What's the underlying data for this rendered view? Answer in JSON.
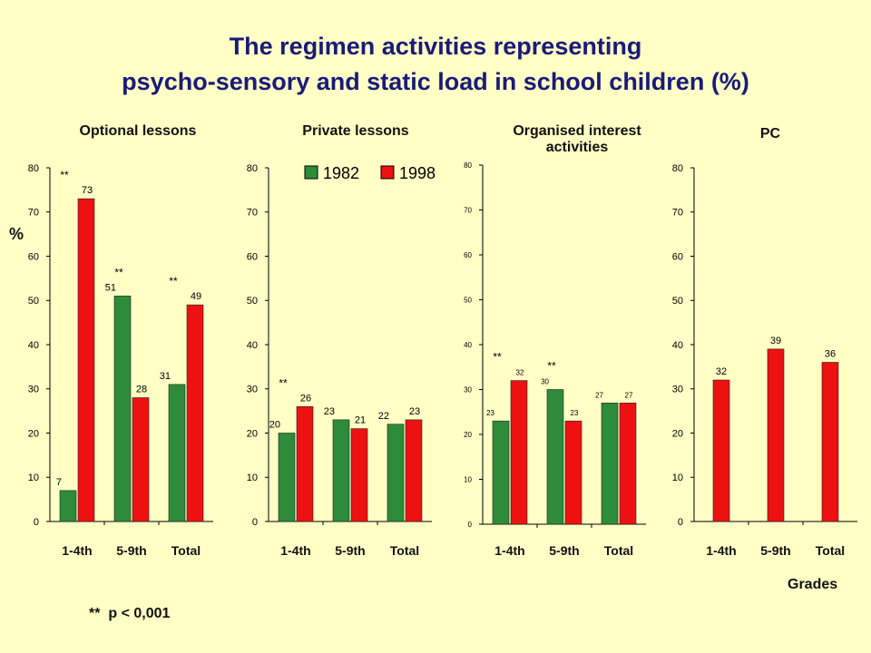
{
  "title_line1": "The regimen activities representing",
  "title_line2": "psycho-sensory and static load in school children (%)",
  "y_unit_label": "%",
  "x_axis_label": "Grades",
  "footnote": "**  p < 0,001",
  "colors": {
    "1982": "#2e8b3a",
    "1998": "#ee1111",
    "background": "#ffffc6",
    "title": "#1a1a7a"
  },
  "chart_data": [
    {
      "type": "bar",
      "title": "Optional lessons",
      "categories": [
        "1-4th",
        "5-9th",
        "Total"
      ],
      "series": [
        {
          "name": "1982",
          "values": [
            7,
            51,
            31
          ],
          "labels": [
            "7",
            "51",
            "31"
          ]
        },
        {
          "name": "1998",
          "values": [
            73,
            28,
            49
          ],
          "labels": [
            "73",
            "28",
            "49"
          ]
        }
      ],
      "ylim": [
        0,
        80
      ],
      "yticks": [
        0,
        10,
        20,
        30,
        40,
        50,
        60,
        70,
        80
      ],
      "significance": [
        true,
        true,
        true
      ],
      "significance_mark": "**",
      "legend": "none"
    },
    {
      "type": "bar",
      "title": "Private lessons",
      "categories": [
        "1-4th",
        "5-9th",
        "Total"
      ],
      "series": [
        {
          "name": "1982",
          "values": [
            20,
            23,
            22
          ],
          "labels": [
            "20",
            "23",
            "22"
          ]
        },
        {
          "name": "1998",
          "values": [
            26,
            21,
            23
          ],
          "labels": [
            "26",
            "21",
            "23"
          ]
        }
      ],
      "ylim": [
        0,
        80
      ],
      "yticks": [
        0,
        10,
        20,
        30,
        40,
        50,
        60,
        70,
        80
      ],
      "significance": [
        true,
        false,
        false
      ],
      "significance_mark": "**",
      "legend": "top",
      "legend_entries": [
        "1982",
        "1998"
      ]
    },
    {
      "type": "bar",
      "title": "Organised interest activities",
      "categories": [
        "1-4th",
        "5-9th",
        "Total"
      ],
      "series": [
        {
          "name": "1982",
          "values": [
            23,
            30,
            27
          ],
          "labels": [
            "23",
            "30",
            "27"
          ]
        },
        {
          "name": "1998",
          "values": [
            32,
            23,
            27
          ],
          "labels": [
            "32",
            "23",
            "27"
          ]
        }
      ],
      "ylim": [
        0,
        80
      ],
      "yticks": [
        0,
        10,
        20,
        30,
        40,
        50,
        60,
        70,
        80
      ],
      "significance": [
        true,
        true,
        false
      ],
      "significance_mark": "**",
      "legend": "none"
    },
    {
      "type": "bar",
      "title": "PC",
      "categories": [
        "1-4th",
        "5-9th",
        "Total"
      ],
      "series": [
        {
          "name": "1998",
          "values": [
            32,
            39,
            36
          ],
          "labels": [
            "32",
            "39",
            "36"
          ]
        }
      ],
      "ylim": [
        0,
        80
      ],
      "yticks": [
        0,
        10,
        20,
        30,
        40,
        50,
        60,
        70,
        80
      ],
      "significance": [
        false,
        false,
        false
      ],
      "significance_mark": "**",
      "legend": "none"
    }
  ]
}
